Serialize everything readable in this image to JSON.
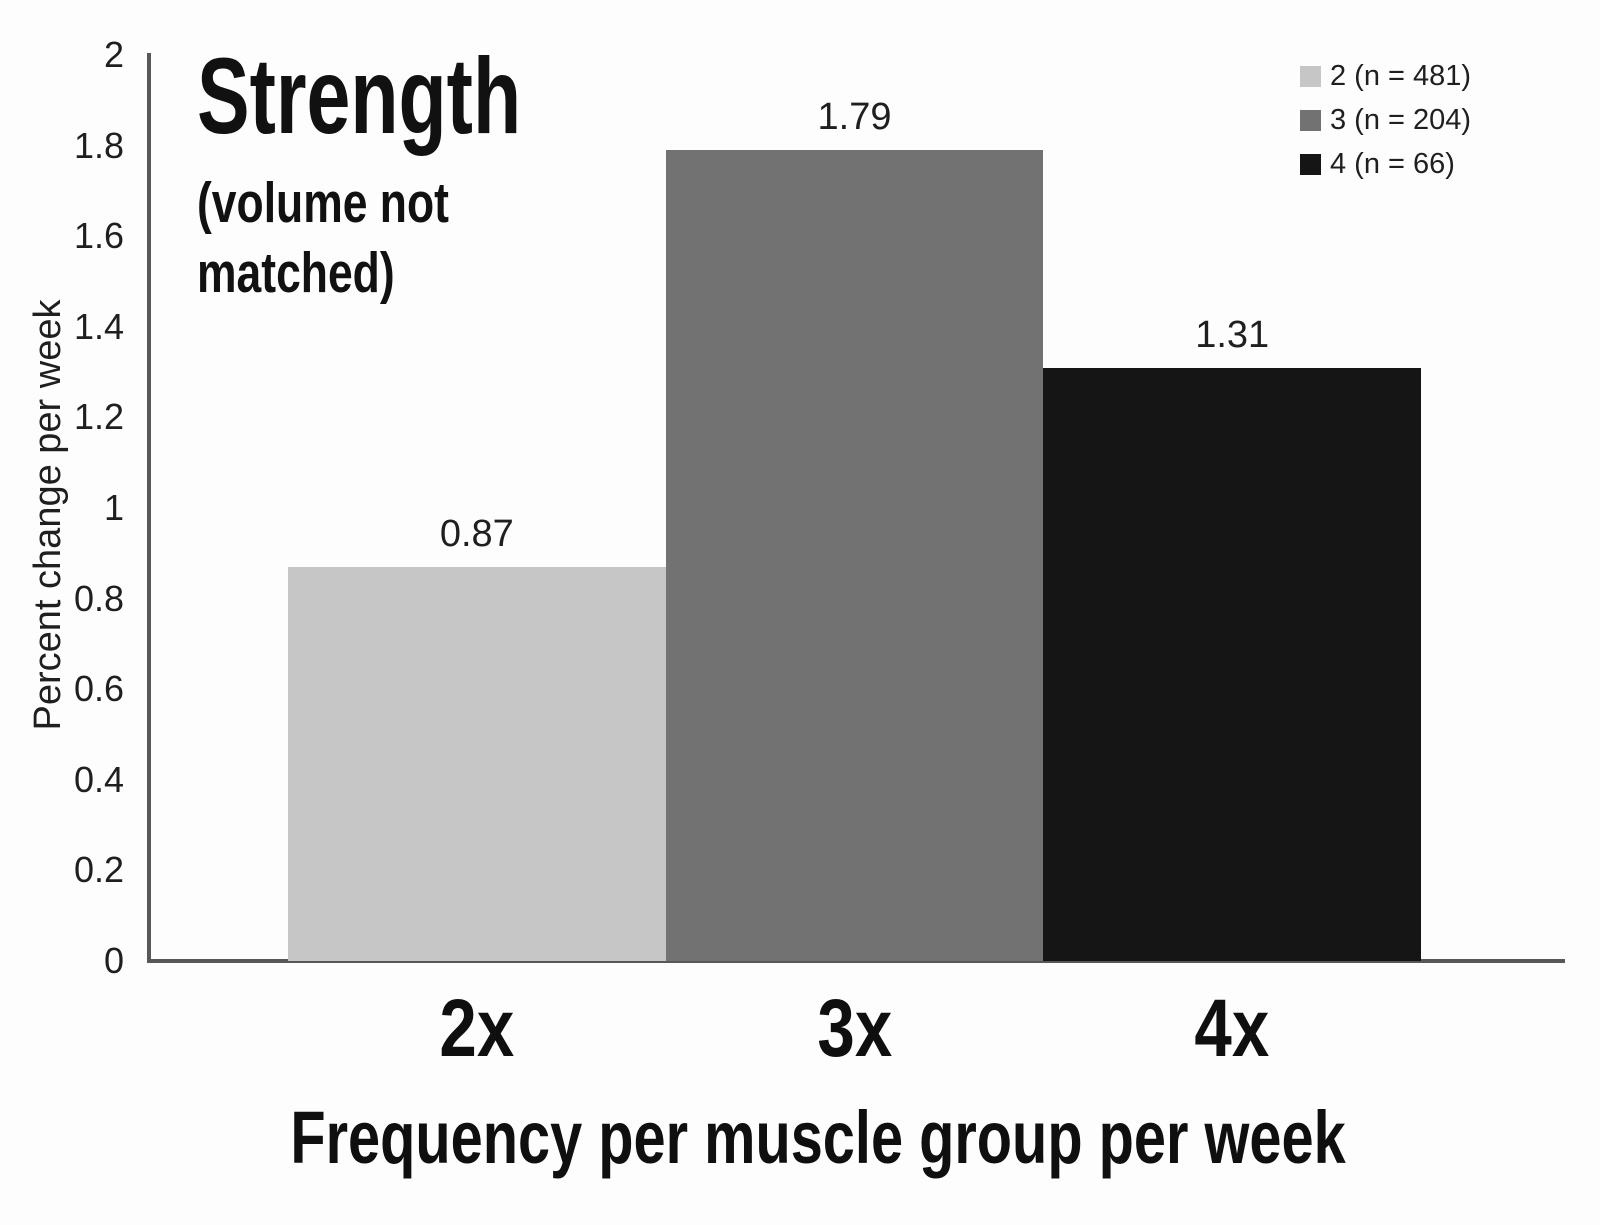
{
  "chart_data": {
    "type": "bar",
    "title": "Strength",
    "subtitle_lines": [
      "(volume not",
      "matched)"
    ],
    "xlabel": "Frequency per muscle group per week",
    "ylabel": "Percent change per week",
    "categories": [
      "2x",
      "3x",
      "4x"
    ],
    "values": [
      0.87,
      1.79,
      1.31
    ],
    "value_labels": [
      "0.87",
      "1.79",
      "1.31"
    ],
    "bar_colors": [
      "#c6c6c6",
      "#727272",
      "#151515"
    ],
    "ylim": [
      0,
      2
    ],
    "ytick_step": 0.2,
    "ytick_labels": [
      "0",
      "0.2",
      "0.4",
      "0.6",
      "0.8",
      "1",
      "1.2",
      "1.4",
      "1.6",
      "1.8",
      "2"
    ],
    "grid": false,
    "legend_position": "top-right",
    "legend": [
      {
        "label": "2 (n = 481)",
        "color": "#c6c6c6"
      },
      {
        "label": "3 (n = 204)",
        "color": "#727272"
      },
      {
        "label": "4 (n = 66)",
        "color": "#151515"
      }
    ],
    "colors": {
      "axis": "#58585a",
      "text": "#1f1f1f",
      "background": "#fdfdfd"
    }
  }
}
